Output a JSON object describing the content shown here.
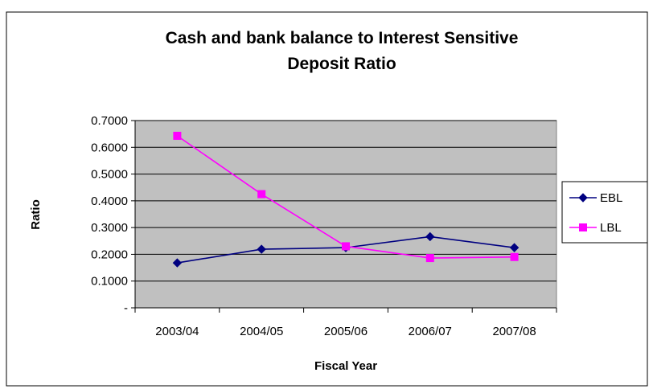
{
  "chart_data": {
    "type": "line",
    "title_lines": [
      "Cash and bank balance to Interest Sensitive",
      "Deposit Ratio"
    ],
    "xlabel": "Fiscal Year",
    "ylabel": "Ratio",
    "categories": [
      "2003/04",
      "2004/05",
      "2005/06",
      "2006/07",
      "2007/08"
    ],
    "y_ticks": [
      "-",
      "0.1000",
      "0.2000",
      "0.3000",
      "0.4000",
      "0.5000",
      "0.6000",
      "0.7000"
    ],
    "ylim": [
      0,
      0.7
    ],
    "grid": "horizontal",
    "plot_background": "#c0c0c0",
    "legend_position": "right",
    "series": [
      {
        "name": "EBL",
        "color": "#000080",
        "marker": "diamond",
        "values": [
          0.168,
          0.219,
          0.225,
          0.266,
          0.225
        ]
      },
      {
        "name": "LBL",
        "color": "#ff00ff",
        "marker": "square",
        "values": [
          0.643,
          0.425,
          0.23,
          0.186,
          0.19
        ]
      }
    ]
  }
}
